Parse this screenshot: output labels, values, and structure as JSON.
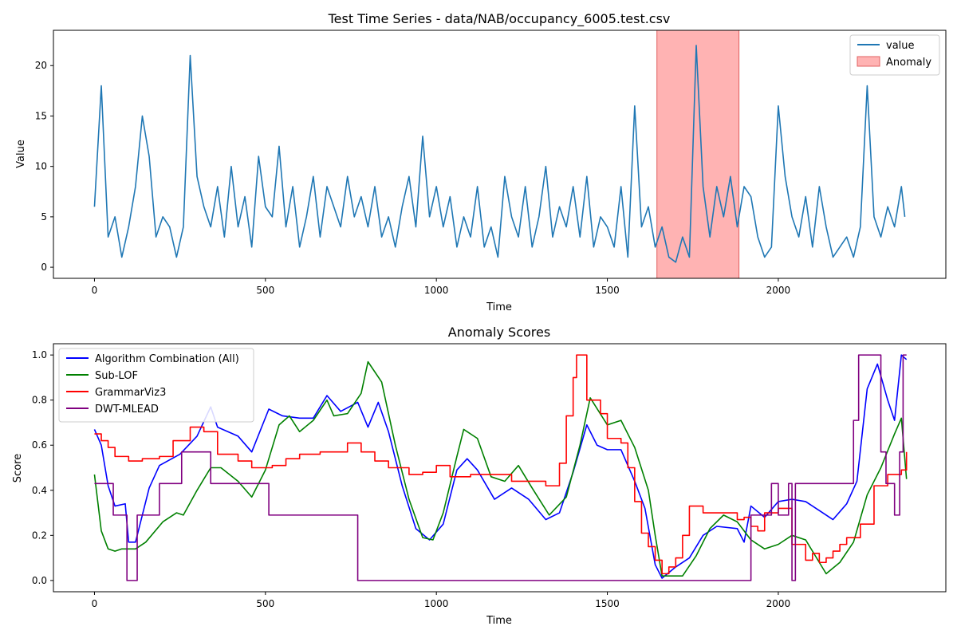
{
  "chart_data": [
    {
      "type": "line",
      "title": "Test Time Series - data/NAB/occupancy_6005.test.csv",
      "xlabel": "Time",
      "ylabel": "Value",
      "xlim": [
        -120,
        2490
      ],
      "ylim": [
        -1.1,
        23.5
      ],
      "xticks": [
        0,
        500,
        1000,
        1500,
        2000
      ],
      "yticks": [
        0,
        5,
        10,
        15,
        20
      ],
      "legend_position": "upper right",
      "series": [
        {
          "name": "value",
          "color": "#1f77b4",
          "x": [
            0,
            20,
            40,
            60,
            80,
            100,
            120,
            140,
            160,
            180,
            200,
            220,
            240,
            260,
            280,
            300,
            320,
            340,
            360,
            380,
            400,
            420,
            440,
            460,
            480,
            500,
            520,
            540,
            560,
            580,
            600,
            620,
            640,
            660,
            680,
            700,
            720,
            740,
            760,
            780,
            800,
            820,
            840,
            860,
            880,
            900,
            920,
            940,
            960,
            980,
            1000,
            1020,
            1040,
            1060,
            1080,
            1100,
            1120,
            1140,
            1160,
            1180,
            1200,
            1220,
            1240,
            1260,
            1280,
            1300,
            1320,
            1340,
            1360,
            1380,
            1400,
            1420,
            1440,
            1460,
            1480,
            1500,
            1520,
            1540,
            1560,
            1580,
            1600,
            1620,
            1640,
            1660,
            1680,
            1700,
            1720,
            1740,
            1760,
            1780,
            1800,
            1820,
            1840,
            1860,
            1880,
            1900,
            1920,
            1940,
            1960,
            1980,
            2000,
            2020,
            2040,
            2060,
            2080,
            2100,
            2120,
            2140,
            2160,
            2180,
            2200,
            2220,
            2240,
            2260,
            2280,
            2300,
            2320,
            2340,
            2360,
            2370
          ],
          "y": [
            6,
            18,
            3,
            5,
            1,
            4,
            8,
            15,
            11,
            3,
            5,
            4,
            1,
            4,
            21,
            9,
            6,
            4,
            8,
            3,
            10,
            4,
            7,
            2,
            11,
            6,
            5,
            12,
            4,
            8,
            2,
            5,
            9,
            3,
            8,
            6,
            4,
            9,
            5,
            7,
            4,
            8,
            3,
            5,
            2,
            6,
            9,
            4,
            13,
            5,
            8,
            4,
            7,
            2,
            5,
            3,
            8,
            2,
            4,
            1,
            9,
            5,
            3,
            8,
            2,
            5,
            10,
            3,
            6,
            4,
            8,
            3,
            9,
            2,
            5,
            4,
            2,
            8,
            1,
            16,
            4,
            6,
            2,
            4,
            1,
            0.5,
            3,
            1,
            22,
            8,
            3,
            8,
            5,
            9,
            4,
            8,
            7,
            3,
            1,
            2,
            16,
            9,
            5,
            3,
            7,
            2,
            8,
            4,
            1,
            2,
            3,
            1,
            4,
            18,
            5,
            3,
            6,
            4,
            8,
            5
          ]
        }
      ],
      "anomaly_regions": [
        {
          "name": "Anomaly",
          "color": "#ff9999",
          "x0": 1645,
          "x1": 1885
        }
      ]
    },
    {
      "type": "line",
      "title": "Anomaly Scores",
      "xlabel": "Time",
      "ylabel": "Score",
      "xlim": [
        -120,
        2490
      ],
      "ylim": [
        -0.05,
        1.05
      ],
      "xticks": [
        0,
        500,
        1000,
        1500,
        2000
      ],
      "yticks": [
        0.0,
        0.2,
        0.4,
        0.6,
        0.8,
        1.0
      ],
      "legend_position": "upper left",
      "series": [
        {
          "name": "Algorithm Combination (All)",
          "color": "#0000ff",
          "step": false,
          "x": [
            0,
            20,
            40,
            60,
            90,
            100,
            120,
            160,
            190,
            250,
            300,
            340,
            360,
            420,
            460,
            510,
            550,
            600,
            640,
            680,
            720,
            770,
            800,
            830,
            860,
            900,
            940,
            980,
            1020,
            1060,
            1090,
            1120,
            1170,
            1220,
            1270,
            1320,
            1360,
            1400,
            1440,
            1470,
            1500,
            1540,
            1580,
            1610,
            1640,
            1660,
            1700,
            1740,
            1780,
            1820,
            1880,
            1900,
            1920,
            1960,
            2000,
            2040,
            2080,
            2120,
            2160,
            2200,
            2230,
            2260,
            2290,
            2320,
            2340,
            2360,
            2375
          ],
          "y": [
            0.67,
            0.6,
            0.42,
            0.33,
            0.34,
            0.17,
            0.17,
            0.41,
            0.51,
            0.56,
            0.64,
            0.77,
            0.68,
            0.64,
            0.57,
            0.76,
            0.73,
            0.72,
            0.72,
            0.82,
            0.75,
            0.79,
            0.68,
            0.79,
            0.66,
            0.42,
            0.23,
            0.18,
            0.25,
            0.49,
            0.54,
            0.49,
            0.36,
            0.41,
            0.36,
            0.27,
            0.3,
            0.48,
            0.69,
            0.6,
            0.58,
            0.58,
            0.44,
            0.32,
            0.07,
            0.01,
            0.06,
            0.1,
            0.2,
            0.24,
            0.23,
            0.17,
            0.33,
            0.28,
            0.35,
            0.36,
            0.35,
            0.31,
            0.27,
            0.34,
            0.44,
            0.85,
            0.96,
            0.8,
            0.71,
            1.0,
            0.98
          ]
        },
        {
          "name": "Sub-LOF",
          "color": "#008000",
          "step": false,
          "x": [
            0,
            20,
            40,
            60,
            80,
            120,
            150,
            200,
            240,
            260,
            300,
            340,
            370,
            420,
            460,
            500,
            540,
            570,
            600,
            640,
            680,
            700,
            740,
            780,
            800,
            840,
            880,
            920,
            960,
            990,
            1020,
            1060,
            1080,
            1120,
            1160,
            1200,
            1240,
            1280,
            1330,
            1380,
            1420,
            1450,
            1500,
            1540,
            1580,
            1620,
            1640,
            1660,
            1720,
            1760,
            1800,
            1840,
            1880,
            1920,
            1960,
            2000,
            2040,
            2080,
            2120,
            2140,
            2180,
            2220,
            2260,
            2300,
            2340,
            2360,
            2375
          ],
          "y": [
            0.47,
            0.22,
            0.14,
            0.13,
            0.14,
            0.14,
            0.17,
            0.26,
            0.3,
            0.29,
            0.4,
            0.5,
            0.5,
            0.44,
            0.37,
            0.49,
            0.69,
            0.73,
            0.66,
            0.71,
            0.8,
            0.73,
            0.74,
            0.83,
            0.97,
            0.88,
            0.6,
            0.36,
            0.19,
            0.18,
            0.3,
            0.55,
            0.67,
            0.63,
            0.46,
            0.44,
            0.51,
            0.41,
            0.29,
            0.37,
            0.6,
            0.81,
            0.69,
            0.71,
            0.59,
            0.4,
            0.2,
            0.02,
            0.02,
            0.11,
            0.23,
            0.29,
            0.26,
            0.18,
            0.14,
            0.16,
            0.2,
            0.18,
            0.08,
            0.03,
            0.08,
            0.17,
            0.38,
            0.5,
            0.65,
            0.72,
            0.45
          ]
        },
        {
          "name": "GrammarViz3",
          "color": "#ff0000",
          "step": true,
          "x": [
            0,
            20,
            40,
            60,
            100,
            140,
            190,
            230,
            280,
            320,
            360,
            420,
            460,
            520,
            560,
            600,
            660,
            700,
            740,
            780,
            820,
            860,
            920,
            960,
            1000,
            1040,
            1100,
            1160,
            1220,
            1260,
            1320,
            1360,
            1380,
            1400,
            1410,
            1440,
            1480,
            1500,
            1540,
            1560,
            1580,
            1600,
            1620,
            1640,
            1660,
            1680,
            1700,
            1720,
            1740,
            1780,
            1820,
            1880,
            1900,
            1920,
            1940,
            1960,
            2000,
            2040,
            2080,
            2100,
            2120,
            2140,
            2160,
            2180,
            2200,
            2240,
            2280,
            2320,
            2360,
            2375
          ],
          "y": [
            0.65,
            0.62,
            0.59,
            0.55,
            0.53,
            0.54,
            0.55,
            0.62,
            0.68,
            0.66,
            0.56,
            0.53,
            0.5,
            0.51,
            0.54,
            0.56,
            0.57,
            0.57,
            0.61,
            0.57,
            0.53,
            0.5,
            0.47,
            0.48,
            0.51,
            0.46,
            0.47,
            0.47,
            0.44,
            0.44,
            0.42,
            0.52,
            0.73,
            0.9,
            1.0,
            0.8,
            0.74,
            0.63,
            0.61,
            0.5,
            0.35,
            0.21,
            0.15,
            0.09,
            0.03,
            0.06,
            0.1,
            0.2,
            0.33,
            0.3,
            0.3,
            0.27,
            0.28,
            0.24,
            0.22,
            0.3,
            0.32,
            0.16,
            0.09,
            0.12,
            0.08,
            0.1,
            0.13,
            0.16,
            0.19,
            0.25,
            0.42,
            0.47,
            0.49,
            0.57
          ]
        },
        {
          "name": "DWT-MLEAD",
          "color": "#800080",
          "step": true,
          "x": [
            0,
            55,
            95,
            125,
            190,
            255,
            340,
            510,
            770,
            1920,
            1980,
            2000,
            2030,
            2040,
            2050,
            2220,
            2235,
            2300,
            2315,
            2340,
            2355,
            2365,
            2375
          ],
          "y": [
            0.43,
            0.29,
            0.0,
            0.29,
            0.43,
            0.57,
            0.43,
            0.29,
            0.0,
            0.29,
            0.43,
            0.29,
            0.43,
            0.0,
            0.43,
            0.71,
            1.0,
            0.57,
            0.43,
            0.29,
            0.57,
            1.0,
            1.0
          ]
        }
      ]
    }
  ]
}
